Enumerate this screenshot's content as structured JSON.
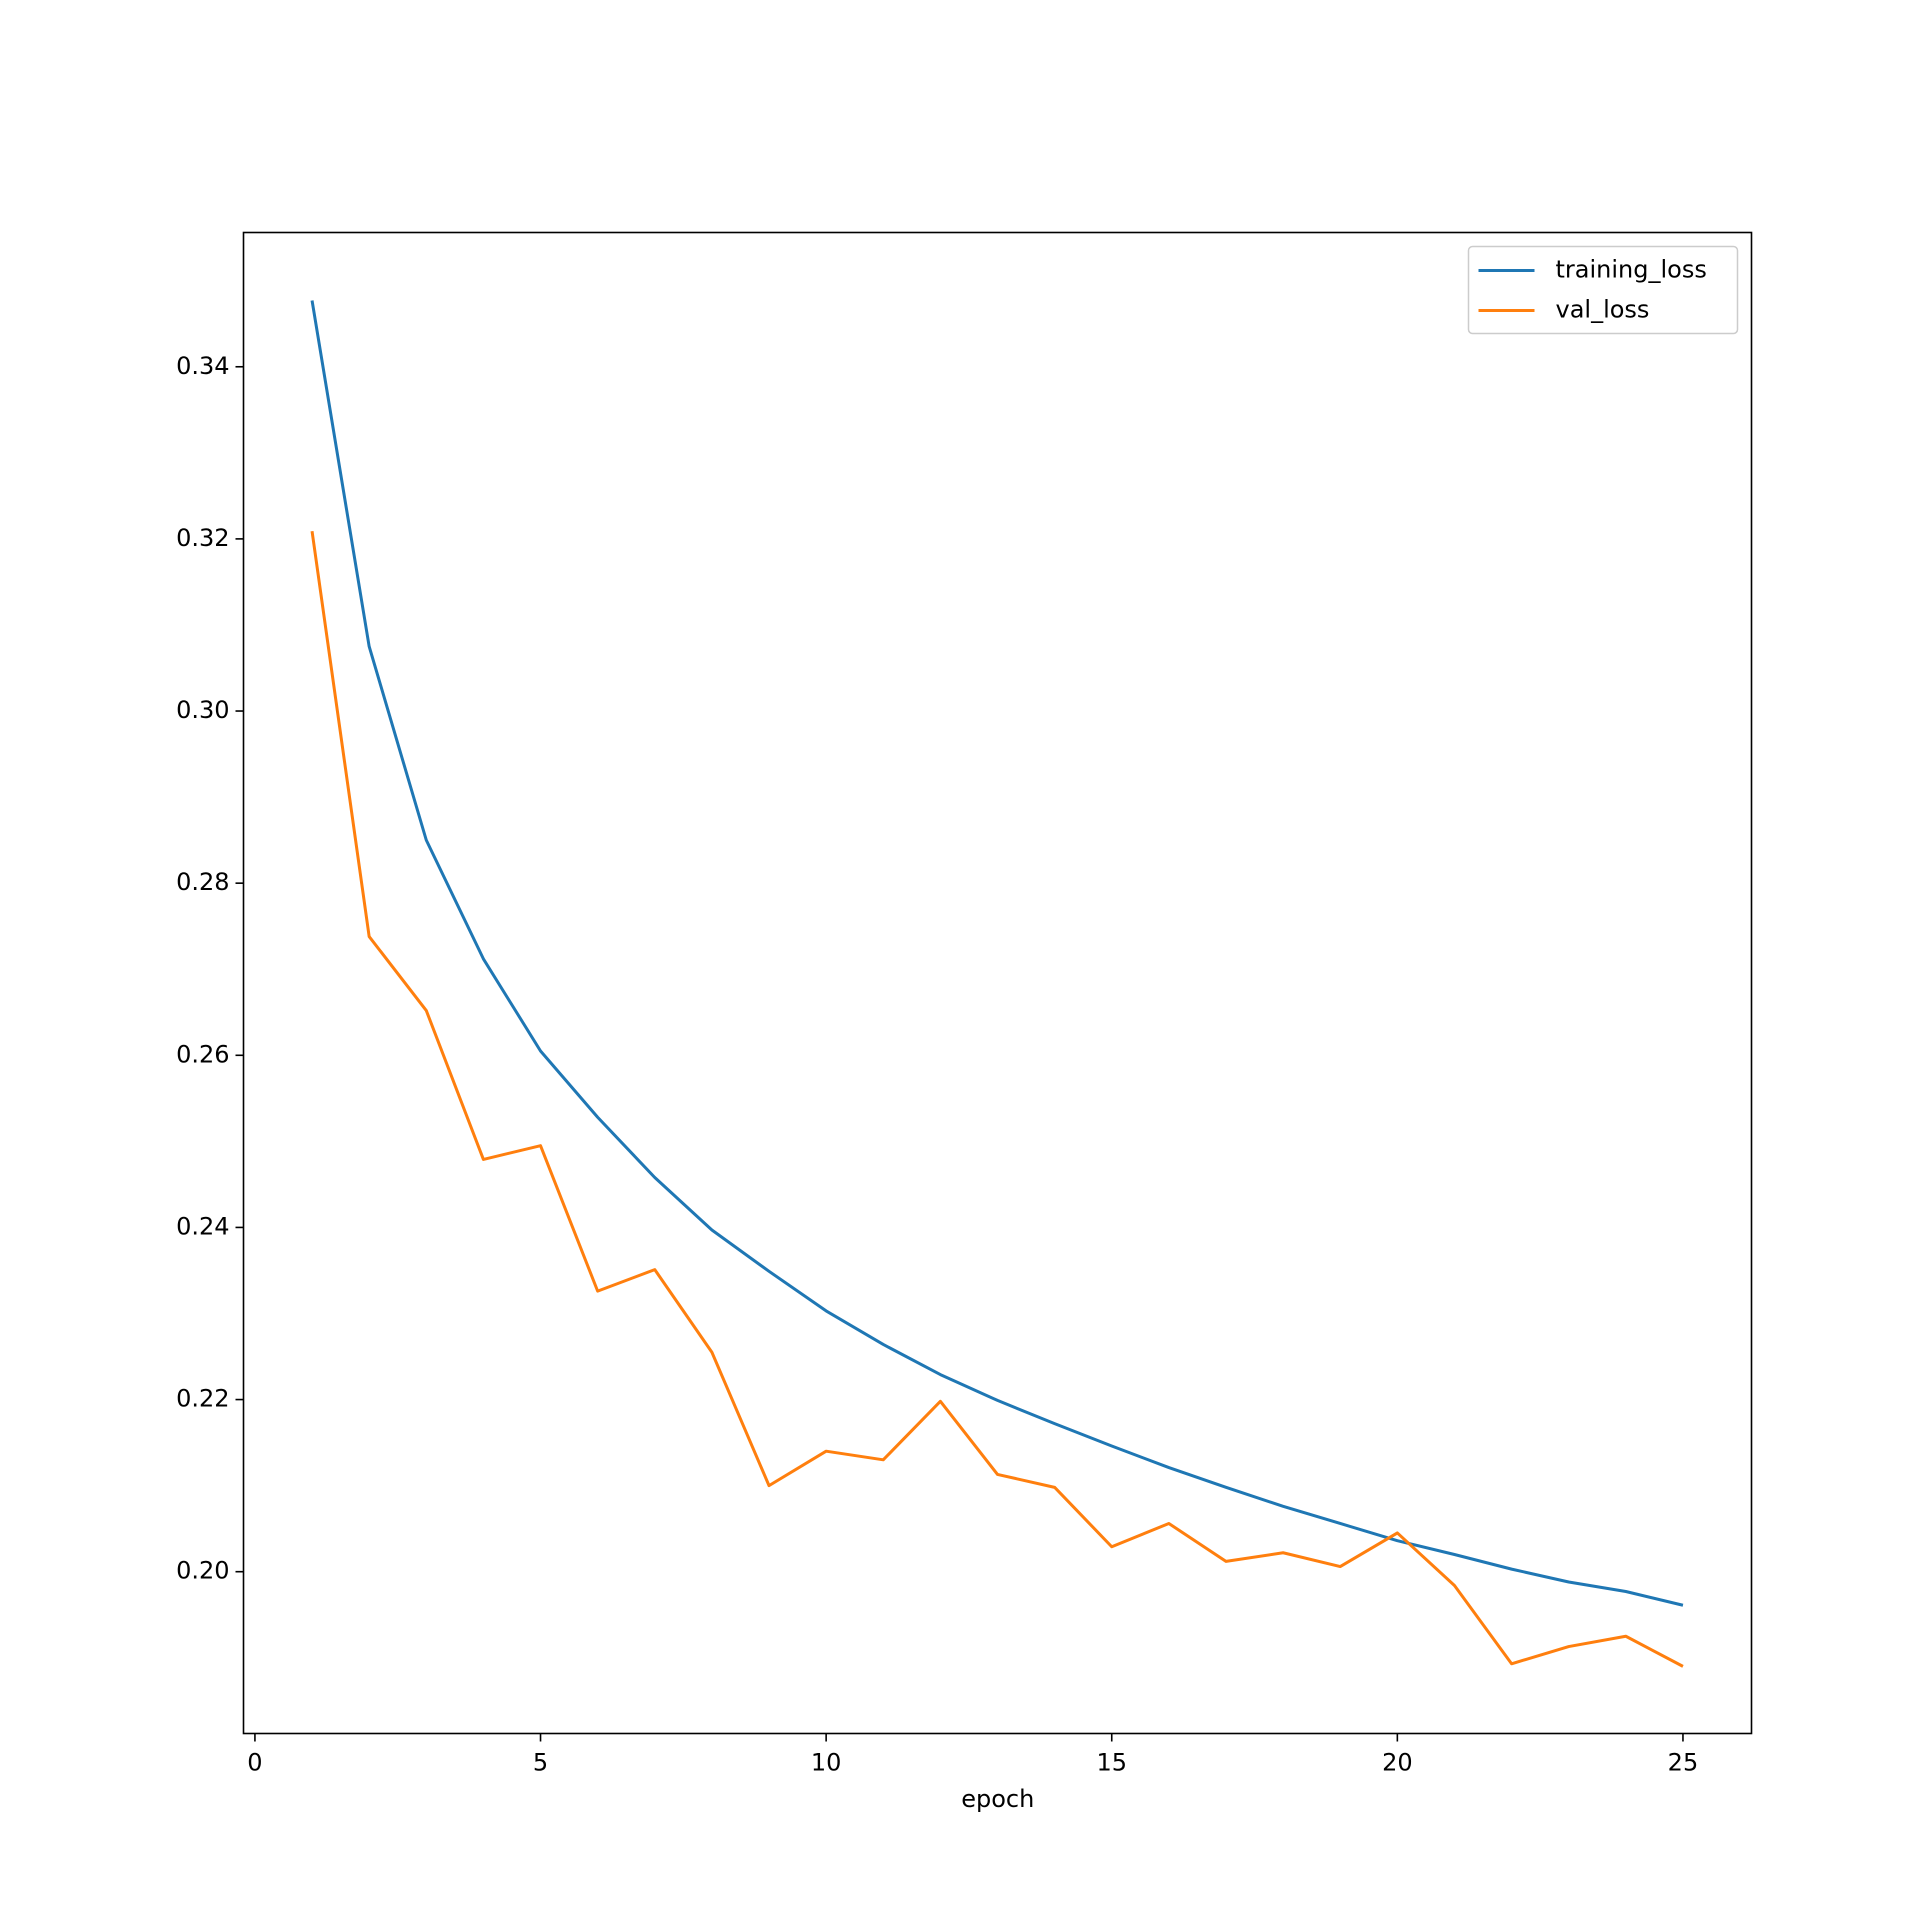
{
  "chart_data": {
    "type": "line",
    "x": [
      1,
      2,
      3,
      4,
      5,
      6,
      7,
      8,
      9,
      10,
      11,
      12,
      13,
      14,
      15,
      16,
      17,
      18,
      19,
      20,
      21,
      22,
      23,
      24,
      25
    ],
    "series": [
      {
        "name": "training_loss",
        "color": "#1f77b4",
        "values": [
          0.3477,
          0.3075,
          0.285,
          0.2712,
          0.2605,
          0.2528,
          0.2458,
          0.2397,
          0.2349,
          0.2303,
          0.2264,
          0.2229,
          0.2199,
          0.2172,
          0.2146,
          0.2121,
          0.2098,
          0.2076,
          0.2056,
          0.2036,
          0.202,
          0.2003,
          0.1988,
          0.1977,
          0.1961
        ]
      },
      {
        "name": "val_loss",
        "color": "#ff7f0e",
        "values": [
          0.3209,
          0.2738,
          0.2652,
          0.2479,
          0.2495,
          0.2326,
          0.2351,
          0.2255,
          0.21,
          0.214,
          0.213,
          0.2198,
          0.2113,
          0.2098,
          0.2029,
          0.2056,
          0.2012,
          0.2022,
          0.2006,
          0.2045,
          0.1984,
          0.1893,
          0.1913,
          0.1925,
          0.189
        ]
      }
    ],
    "xlabel": "epoch",
    "xlim": [
      -0.2,
      26.2
    ],
    "xticks": [
      0,
      5,
      10,
      15,
      20,
      25
    ],
    "ylim": [
      0.1812,
      0.3556
    ],
    "yticks": [
      {
        "value": 0.2,
        "label": "0.20"
      },
      {
        "value": 0.22,
        "label": "0.22"
      },
      {
        "value": 0.24,
        "label": "0.24"
      },
      {
        "value": 0.26,
        "label": "0.26"
      },
      {
        "value": 0.28,
        "label": "0.28"
      },
      {
        "value": 0.3,
        "label": "0.30"
      },
      {
        "value": 0.32,
        "label": "0.32"
      },
      {
        "value": 0.34,
        "label": "0.34"
      }
    ],
    "legend": "upper right"
  }
}
